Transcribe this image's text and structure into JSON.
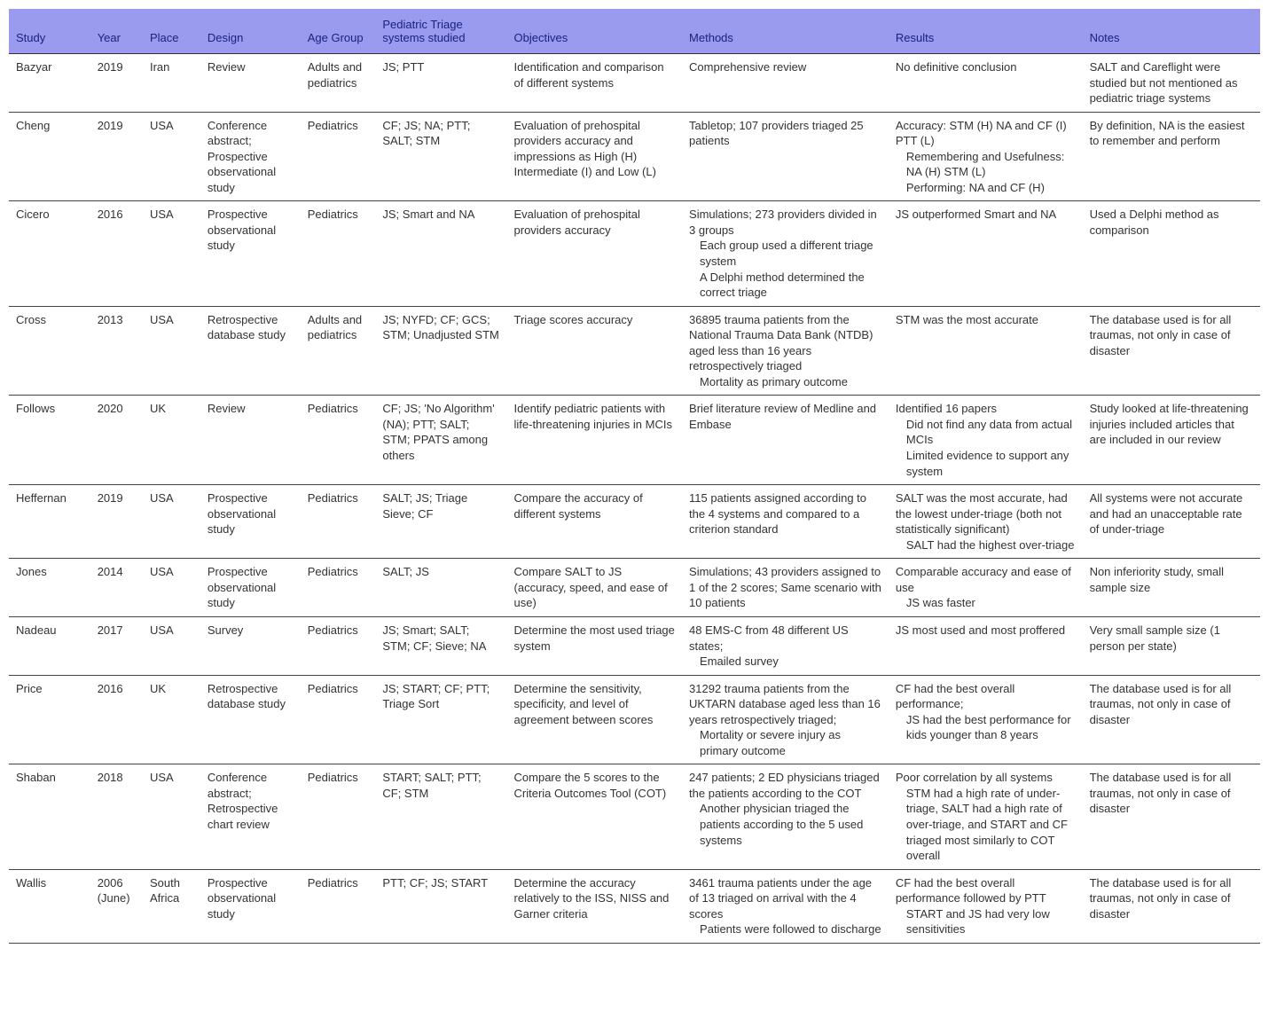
{
  "header": {
    "background_color": "#9a9aee",
    "text_color": "#1a237e",
    "fontsize": 13
  },
  "columns": [
    {
      "key": "study",
      "label": "Study"
    },
    {
      "key": "year",
      "label": "Year"
    },
    {
      "key": "place",
      "label": "Place"
    },
    {
      "key": "design",
      "label": "Design"
    },
    {
      "key": "age",
      "label": "Age Group"
    },
    {
      "key": "systems",
      "label": "Pediatric Triage systems studied"
    },
    {
      "key": "objectives",
      "label": "Objectives"
    },
    {
      "key": "methods",
      "label": "Methods"
    },
    {
      "key": "results",
      "label": "Results"
    },
    {
      "key": "notes",
      "label": "Notes"
    }
  ],
  "rows": [
    {
      "study": "Bazyar",
      "year": "2019",
      "place": "Iran",
      "design": "Review",
      "age": "Adults and pediatrics",
      "systems": "JS; PTT",
      "objectives": "Identification and comparison of different systems",
      "methods": "Comprehensive review",
      "results": "No definitive conclusion",
      "notes": "SALT and Careflight were studied but not mentioned as pediatric triage systems"
    },
    {
      "study": "Cheng",
      "year": "2019",
      "place": "USA",
      "design": "Conference abstract; Prospective observational study",
      "age": "Pediatrics",
      "systems": "CF; JS; NA; PTT; SALT; STM",
      "objectives": "Evaluation of prehospital providers accuracy and impressions as High (H) Intermediate (I) and Low (L)",
      "methods": "Tabletop; 107 providers triaged 25 patients",
      "results": "Accuracy: STM (H) NA and CF (I) PTT (L)",
      "results_sub1": "Remembering and Usefulness: NA (H) STM (L)",
      "results_sub2": "Performing: NA and CF (H)",
      "notes": "By definition, NA is the easiest to remember and perform"
    },
    {
      "study": "Cicero",
      "year": "2016",
      "place": "USA",
      "design": "Prospective observational study",
      "age": "Pediatrics",
      "systems": "JS; Smart and NA",
      "objectives": "Evaluation of prehospital providers accuracy",
      "methods": "Simulations; 273 providers divided in 3 groups",
      "methods_sub1": "Each group used a different triage system",
      "methods_sub2": "A Delphi method determined the correct triage",
      "results": "JS outperformed Smart and NA",
      "notes": "Used a Delphi method as comparison"
    },
    {
      "study": "Cross",
      "year": "2013",
      "place": "USA",
      "design": "Retrospective database study",
      "age": "Adults and pediatrics",
      "systems": "JS; NYFD; CF; GCS; STM; Unadjusted STM",
      "objectives": "Triage scores accuracy",
      "methods": "36895 trauma patients from the National Trauma Data Bank (NTDB) aged less than 16 years retrospectively triaged",
      "methods_sub1": "Mortality as primary outcome",
      "results": "STM was the most accurate",
      "notes": "The database used is for all traumas, not only in case of disaster"
    },
    {
      "study": "Follows",
      "year": "2020",
      "place": "UK",
      "design": "Review",
      "age": "Pediatrics",
      "systems": "CF; JS; 'No Algorithm' (NA); PTT; SALT; STM; PPATS among others",
      "objectives": "Identify pediatric patients with life-threatening injuries in MCIs",
      "methods": "Brief literature review of Medline and Embase",
      "results": "Identified 16 papers",
      "results_sub1": "Did not find any data from actual MCIs",
      "results_sub2": "Limited evidence to support any system",
      "notes": "Study looked at life-threatening injuries included articles that are included in our review"
    },
    {
      "study": "Heffernan",
      "year": "2019",
      "place": "USA",
      "design": "Prospective observational study",
      "age": "Pediatrics",
      "systems": "SALT; JS; Triage Sieve; CF",
      "objectives": "Compare the accuracy of different systems",
      "methods": "115 patients assigned according to the 4 systems and compared to a criterion standard",
      "results": "SALT was the most accurate, had the lowest under-triage (both not statistically significant)",
      "results_sub1": "SALT had the highest over-triage",
      "notes": "All systems were not accurate and had an unacceptable rate of under-triage"
    },
    {
      "study": "Jones",
      "year": "2014",
      "place": "USA",
      "design": "Prospective observational study",
      "age": "Pediatrics",
      "systems": "SALT; JS",
      "objectives": "Compare SALT to JS (accuracy, speed, and ease of use)",
      "methods": "Simulations; 43 providers assigned to 1 of the 2 scores; Same scenario with 10 patients",
      "results": "Comparable accuracy and ease of use",
      "results_sub1": "JS was faster",
      "notes": "Non inferiority study, small sample size"
    },
    {
      "study": "Nadeau",
      "year": "2017",
      "place": "USA",
      "design": "Survey",
      "age": "Pediatrics",
      "systems": "JS; Smart; SALT; STM; CF; Sieve; NA",
      "objectives": "Determine the most used triage system",
      "methods": "48 EMS-C from 48 different US states;",
      "methods_sub1": "Emailed survey",
      "results": "JS most used and most proffered",
      "notes": "Very small sample size (1 person per state)"
    },
    {
      "study": "Price",
      "year": "2016",
      "place": "UK",
      "design": "Retrospective database study",
      "age": "Pediatrics",
      "systems": "JS; START; CF; PTT; Triage Sort",
      "objectives": "Determine the sensitivity, specificity, and level of agreement between scores",
      "methods": "31292 trauma patients from the UKTARN database aged less than 16 years retrospectively triaged;",
      "methods_sub1": "Mortality or severe injury as primary outcome",
      "results": "CF had the best overall performance;",
      "results_sub1": "JS had the best performance for kids younger than 8 years",
      "notes": "The database used is for all traumas, not only in case of disaster"
    },
    {
      "study": "Shaban",
      "year": "2018",
      "place": "USA",
      "design": "Conference abstract; Retrospective chart review",
      "age": "Pediatrics",
      "systems": "START; SALT; PTT; CF; STM",
      "objectives": "Compare the 5 scores to the Criteria Outcomes Tool (COT)",
      "methods": "247 patients; 2 ED physicians triaged the patients according to the COT",
      "methods_sub1": "Another physician triaged the patients according to the 5 used systems",
      "results": "Poor correlation by all systems",
      "results_sub1": "STM had a high rate of under-triage, SALT had a high rate of over-triage, and START and CF triaged most similarly to COT overall",
      "notes": "The database used is for all traumas, not only in case of disaster"
    },
    {
      "study": "Wallis",
      "year": "2006 (June)",
      "place": "South Africa",
      "design": "Prospective observational study",
      "age": "Pediatrics",
      "systems": "PTT; CF; JS; START",
      "objectives": "Determine the accuracy relatively to the ISS, NISS and Garner criteria",
      "methods": "3461 trauma patients under the age of 13 triaged on arrival with the 4 scores",
      "methods_sub1": "Patients were followed to discharge",
      "results": "CF had the best overall performance followed by PTT",
      "results_sub1": "START and JS had very low sensitivities",
      "notes": "The database used is for all traumas, not only in case of disaster"
    }
  ]
}
